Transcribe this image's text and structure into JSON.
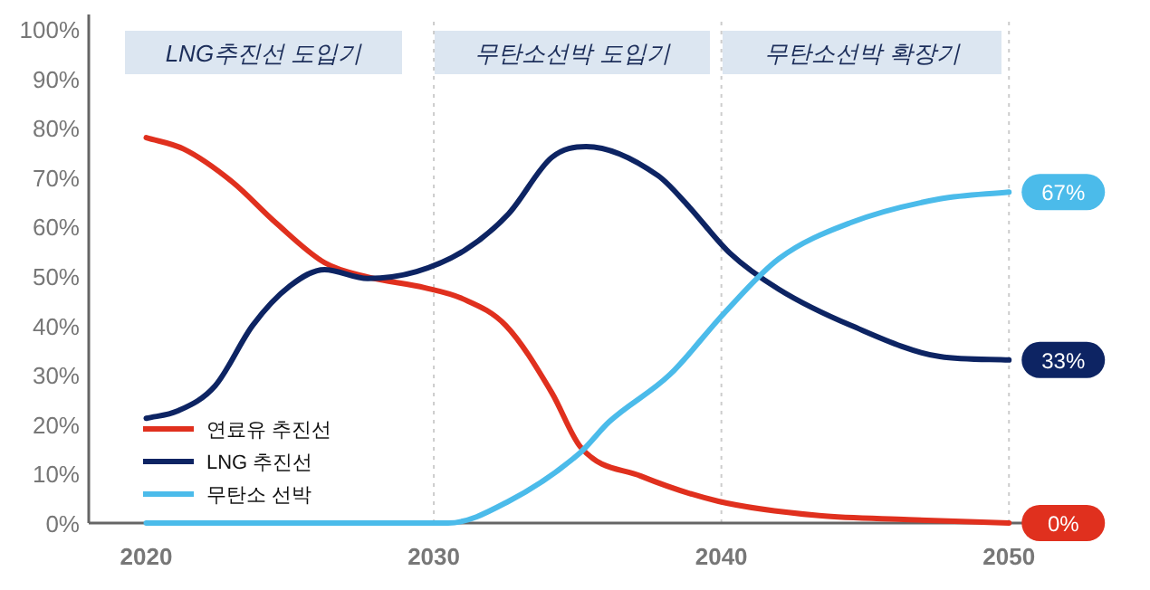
{
  "chart_data": {
    "type": "line",
    "xlim": [
      2018,
      2051
    ],
    "xticks": [
      2020,
      2030,
      2040,
      2050
    ],
    "ylim": [
      0,
      100
    ],
    "yticks": [
      {
        "value": 0,
        "label": "0%"
      },
      {
        "value": 10,
        "label": "10%"
      },
      {
        "value": 20,
        "label": "20%"
      },
      {
        "value": 30,
        "label": "30%"
      },
      {
        "value": 40,
        "label": "40%"
      },
      {
        "value": 50,
        "label": "50%"
      },
      {
        "value": 60,
        "label": "60%"
      },
      {
        "value": 70,
        "label": "70%"
      },
      {
        "value": 80,
        "label": "80%"
      },
      {
        "value": 90,
        "label": "90%"
      },
      {
        "value": 100,
        "label": "100%"
      }
    ],
    "grid": false,
    "legend": "bottom left",
    "marker": "none",
    "line_style": "solid",
    "series": [
      {
        "name": "연료유 추진선",
        "color": "#e0301e",
        "x": [
          2020,
          2021.3,
          2023,
          2024.5,
          2026.2,
          2027.7,
          2029.7,
          2031,
          2032.5,
          2034.1,
          2035.1,
          2037.2,
          2039.9,
          2043.4,
          2046.5,
          2050
        ],
        "values": [
          78,
          75.7,
          69,
          60.8,
          52.7,
          49.8,
          47.6,
          45.4,
          40,
          26.4,
          15.4,
          9.5,
          4.4,
          1.5,
          0.7,
          0
        ],
        "value_labels": [
          null,
          null,
          null,
          null,
          null,
          null,
          null,
          null,
          null,
          null,
          null,
          null,
          null,
          null,
          null,
          "0%"
        ]
      },
      {
        "name": "LNG 추진선",
        "color": "#0d2463",
        "x": [
          2020,
          2021.1,
          2022.4,
          2023.7,
          2025,
          2026.2,
          2027.7,
          2029.4,
          2031.1,
          2032.6,
          2034.1,
          2035.3,
          2037.8,
          2038.8,
          2040.3,
          2042,
          2044.5,
          2047.6,
          2050
        ],
        "values": [
          21.2,
          22.7,
          27.8,
          40,
          48,
          51.3,
          49.5,
          50.9,
          55.3,
          62.6,
          74,
          76.2,
          70.3,
          64.5,
          54.6,
          47.3,
          40,
          33.7,
          33
        ],
        "value_labels": [
          null,
          null,
          null,
          null,
          null,
          null,
          null,
          null,
          null,
          null,
          null,
          null,
          null,
          null,
          null,
          null,
          null,
          null,
          "33%"
        ]
      },
      {
        "name": "무탄소 선박",
        "color": "#4bbbea",
        "x": [
          2020,
          2030.5,
          2032.6,
          2035.1,
          2036.1,
          2038.2,
          2040.1,
          2042,
          2044.5,
          2047.6,
          2050
        ],
        "values": [
          0,
          0,
          4.4,
          14.3,
          20.5,
          30,
          42.5,
          53.5,
          60.8,
          65.6,
          67
        ],
        "value_labels": [
          null,
          null,
          null,
          null,
          null,
          null,
          null,
          null,
          null,
          null,
          "67%"
        ]
      }
    ],
    "ref_lines": [
      {
        "axis": "x",
        "value": 2030,
        "color": "#cccccc",
        "line_style": "dotted"
      },
      {
        "axis": "x",
        "value": 2040,
        "color": "#cccccc",
        "line_style": "dotted"
      },
      {
        "axis": "x",
        "value": 2050,
        "color": "#cccccc",
        "line_style": "dotted"
      }
    ],
    "annotations": [
      "LNG추진선 도입기",
      "무탄소선박 도입기",
      "무탄소선박 확장기"
    ]
  }
}
